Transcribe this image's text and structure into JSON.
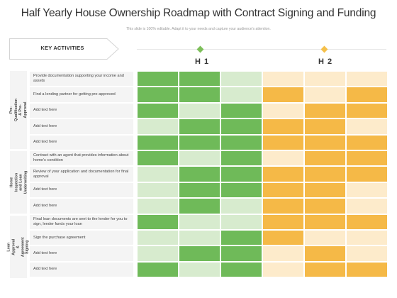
{
  "title": "Half Yearly House Ownership Roadmap with Contract Signing and Funding",
  "subtitle": "This slide is 100% editable. Adapt it to your needs and capture your audience's attention.",
  "key_activities_label": "KEY ACTIVITIES",
  "halves": [
    "H 1",
    "H 2"
  ],
  "colors": {
    "green_dark": "#6fba59",
    "green_light": "#d7ebce",
    "orange_dark": "#f5b947",
    "orange_light": "#fdebcb",
    "h1_diamond": "#7dbf5a",
    "h2_diamond": "#f5c04a"
  },
  "sections": [
    {
      "label": "Pre-Qualification & Pre-Approval",
      "rows": 5
    },
    {
      "label": "Home Inspection and Loan Underwriting",
      "rows": 4
    },
    {
      "label": "Loan Approval & Agreement Signing",
      "rows": 4
    }
  ],
  "activities": [
    "Provide documentation supporting your income and assets",
    "Find a lending partner for getting pre-approved",
    "Add text here",
    "Add text here",
    "Add text here",
    "Contract with an agent that provides information about home's condition",
    "Review of your application and documentation for final approval",
    "Add text here",
    "Add text here",
    "Final loan documents are sent to the lender for you to sign, lender funds your loan",
    "Sign the purchase agreement",
    "Add text here",
    "Add text here"
  ],
  "grid_pattern": [
    [
      "G",
      "G",
      "g",
      "o",
      "o",
      "o"
    ],
    [
      "G",
      "G",
      "g",
      "O",
      "o",
      "O"
    ],
    [
      "G",
      "g",
      "G",
      "o",
      "O",
      "O"
    ],
    [
      "g",
      "G",
      "G",
      "O",
      "O",
      "o"
    ],
    [
      "G",
      "G",
      "G",
      "O",
      "O",
      "O"
    ],
    [
      "G",
      "g",
      "G",
      "o",
      "O",
      "O"
    ],
    [
      "g",
      "G",
      "G",
      "O",
      "O",
      "O"
    ],
    [
      "g",
      "G",
      "G",
      "O",
      "O",
      "o"
    ],
    [
      "g",
      "G",
      "g",
      "O",
      "O",
      "o"
    ],
    [
      "G",
      "g",
      "g",
      "O",
      "O",
      "O"
    ],
    [
      "g",
      "g",
      "G",
      "O",
      "o",
      "o"
    ],
    [
      "g",
      "G",
      "G",
      "o",
      "O",
      "o"
    ],
    [
      "G",
      "g",
      "G",
      "o",
      "O",
      "O"
    ]
  ]
}
